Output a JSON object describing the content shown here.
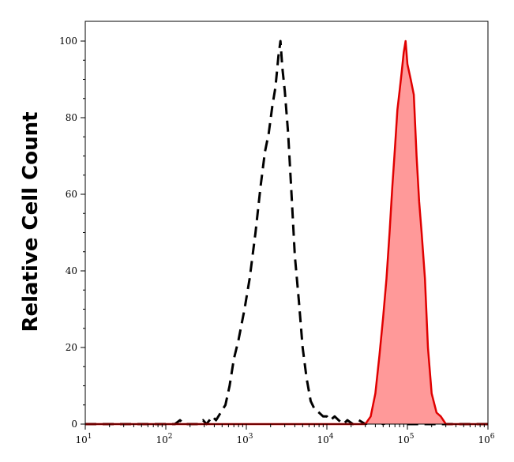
{
  "chart_data": {
    "type": "area",
    "title": "",
    "xlabel": "",
    "ylabel": "Relative Cell Count",
    "x_scale": "log",
    "xlim": [
      10,
      1000000
    ],
    "ylim": [
      0,
      100
    ],
    "grid": false,
    "legend": "none",
    "x_ticks": [
      {
        "base": "10",
        "exp": "1",
        "value": 10
      },
      {
        "base": "10",
        "exp": "2",
        "value": 100
      },
      {
        "base": "10",
        "exp": "3",
        "value": 1000
      },
      {
        "base": "10",
        "exp": "4",
        "value": 10000
      },
      {
        "base": "10",
        "exp": "5",
        "value": 100000
      },
      {
        "base": "10",
        "exp": "6",
        "value": 1000000
      }
    ],
    "y_ticks": [
      "0",
      "20",
      "40",
      "60",
      "80",
      "100"
    ],
    "series": [
      {
        "style": "dashed",
        "color": "#000000",
        "fill": "none",
        "points": [
          [
            10,
            0
          ],
          [
            100,
            0
          ],
          [
            130,
            0
          ],
          [
            150,
            1
          ],
          [
            170,
            0
          ],
          [
            250,
            0
          ],
          [
            290,
            1
          ],
          [
            320,
            0
          ],
          [
            380,
            2
          ],
          [
            420,
            1
          ],
          [
            480,
            3
          ],
          [
            550,
            5
          ],
          [
            620,
            10
          ],
          [
            700,
            17
          ],
          [
            800,
            22
          ],
          [
            950,
            30
          ],
          [
            1100,
            38
          ],
          [
            1300,
            50
          ],
          [
            1500,
            62
          ],
          [
            1700,
            71
          ],
          [
            1900,
            76
          ],
          [
            2100,
            83
          ],
          [
            2300,
            88
          ],
          [
            2500,
            96
          ],
          [
            2650,
            100
          ],
          [
            2800,
            93
          ],
          [
            3000,
            87
          ],
          [
            3300,
            76
          ],
          [
            3600,
            62
          ],
          [
            4000,
            44
          ],
          [
            4500,
            32
          ],
          [
            5000,
            20
          ],
          [
            5600,
            12
          ],
          [
            6300,
            6
          ],
          [
            7000,
            4
          ],
          [
            8000,
            3
          ],
          [
            9000,
            2
          ],
          [
            10000,
            2
          ],
          [
            11000,
            1
          ],
          [
            12500,
            2
          ],
          [
            14000,
            1
          ],
          [
            16000,
            0
          ],
          [
            18000,
            1
          ],
          [
            21000,
            0
          ],
          [
            25000,
            1
          ],
          [
            30000,
            0
          ],
          [
            40000,
            1
          ],
          [
            50000,
            0
          ],
          [
            70000,
            1
          ],
          [
            100000,
            0
          ],
          [
            1000000,
            0
          ]
        ]
      },
      {
        "style": "solid",
        "color": "#e00000",
        "fill": "#ff9999",
        "points": [
          [
            10,
            0
          ],
          [
            30000,
            0
          ],
          [
            35000,
            2
          ],
          [
            40000,
            8
          ],
          [
            45000,
            18
          ],
          [
            50000,
            28
          ],
          [
            55000,
            38
          ],
          [
            60000,
            50
          ],
          [
            65000,
            62
          ],
          [
            70000,
            72
          ],
          [
            75000,
            82
          ],
          [
            80000,
            87
          ],
          [
            85000,
            92
          ],
          [
            90000,
            97
          ],
          [
            95000,
            100
          ],
          [
            100000,
            94
          ],
          [
            110000,
            90
          ],
          [
            120000,
            86
          ],
          [
            130000,
            70
          ],
          [
            140000,
            58
          ],
          [
            150000,
            50
          ],
          [
            165000,
            38
          ],
          [
            180000,
            20
          ],
          [
            200000,
            8
          ],
          [
            230000,
            3
          ],
          [
            260000,
            2
          ],
          [
            300000,
            0
          ],
          [
            1000000,
            0
          ]
        ]
      }
    ]
  }
}
